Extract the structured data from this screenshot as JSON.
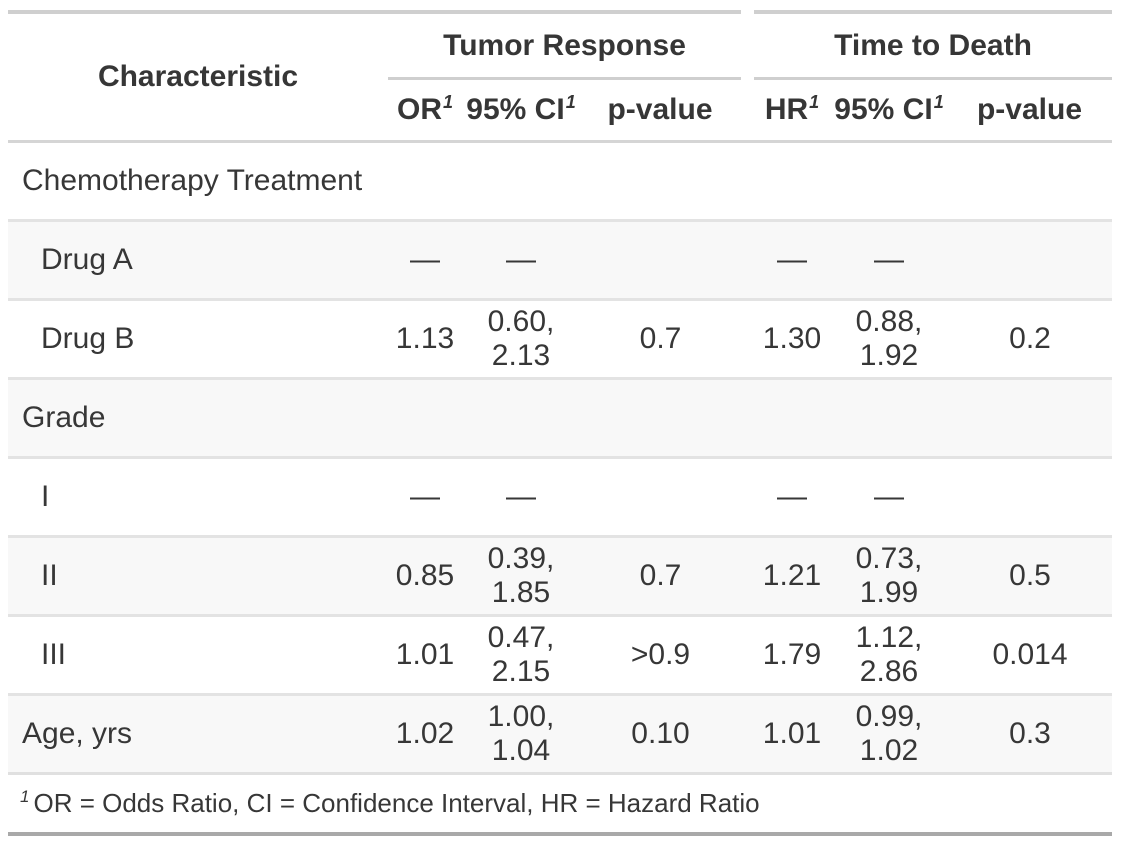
{
  "chart_data": {
    "type": "table",
    "column_groups": [
      {
        "label": "Tumor Response",
        "columns": [
          "OR",
          "95% CI",
          "p-value"
        ]
      },
      {
        "label": "Time to Death",
        "columns": [
          "HR",
          "95% CI",
          "p-value"
        ]
      }
    ],
    "columns": [
      "Characteristic",
      "OR",
      "95% CI",
      "p-value",
      "HR",
      "95% CI",
      "p-value"
    ],
    "rows": [
      {
        "label": "Chemotherapy Treatment",
        "indent": false,
        "cells": [
          "",
          "",
          "",
          "",
          "",
          ""
        ]
      },
      {
        "label": "Drug A",
        "indent": true,
        "cells": [
          "—",
          "—",
          "",
          "—",
          "—",
          ""
        ]
      },
      {
        "label": "Drug B",
        "indent": true,
        "cells": [
          "1.13",
          "0.60, 2.13",
          "0.7",
          "1.30",
          "0.88, 1.92",
          "0.2"
        ]
      },
      {
        "label": "Grade",
        "indent": false,
        "cells": [
          "",
          "",
          "",
          "",
          "",
          ""
        ]
      },
      {
        "label": "I",
        "indent": true,
        "cells": [
          "—",
          "—",
          "",
          "—",
          "—",
          ""
        ]
      },
      {
        "label": "II",
        "indent": true,
        "cells": [
          "0.85",
          "0.39, 1.85",
          "0.7",
          "1.21",
          "0.73, 1.99",
          "0.5"
        ]
      },
      {
        "label": "III",
        "indent": true,
        "cells": [
          "1.01",
          "0.47, 2.15",
          ">0.9",
          "1.79",
          "1.12, 2.86",
          "0.014"
        ]
      },
      {
        "label": "Age, yrs",
        "indent": false,
        "cells": [
          "1.02",
          "1.00, 1.04",
          "0.10",
          "1.01",
          "0.99, 1.02",
          "0.3"
        ]
      }
    ]
  },
  "headers": {
    "characteristic": "Characteristic",
    "spanner_tumor_response": "Tumor Response",
    "spanner_time_to_death": "Time to Death",
    "cols": [
      {
        "label": "OR",
        "sup": "1"
      },
      {
        "label": "95% CI",
        "sup": "1"
      },
      {
        "label": "p-value",
        "sup": ""
      },
      {
        "label": "HR",
        "sup": "1"
      },
      {
        "label": "95% CI",
        "sup": "1"
      },
      {
        "label": "p-value",
        "sup": ""
      }
    ]
  },
  "footnote": {
    "mark": "1",
    "text": "OR = Odds Ratio, CI = Confidence Interval, HR = Hazard Ratio"
  },
  "colors": {
    "text": "#373737",
    "stripe_background": "#f8f8f8",
    "row_divider": "#e3e3e3",
    "header_border": "#d5d5d5",
    "top_border": "#cfcfcf",
    "spanner_underline": "#cfcfcf",
    "bottom_border": "#a9a9a9"
  }
}
